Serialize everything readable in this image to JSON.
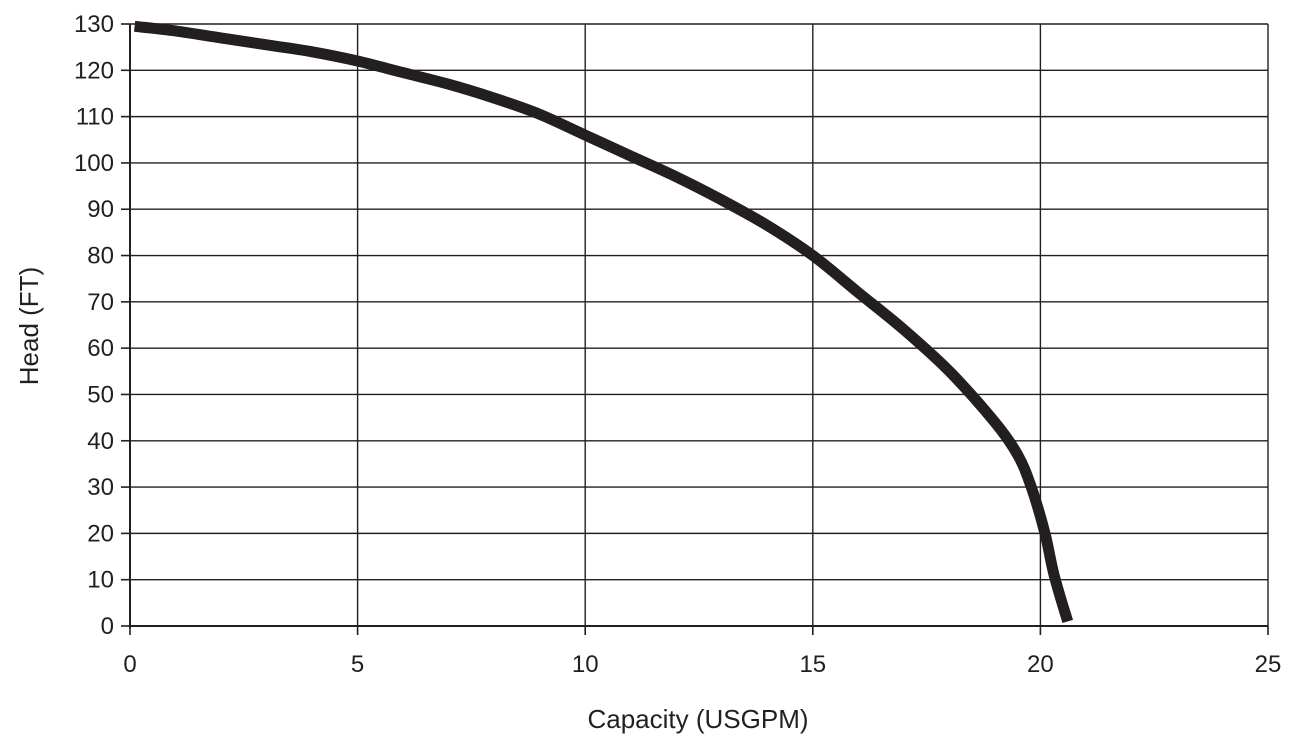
{
  "chart_data": {
    "type": "line",
    "title": "",
    "xlabel": "Capacity (USGPM)",
    "ylabel": "Head (FT)",
    "xlim": [
      0,
      25
    ],
    "ylim": [
      0,
      130
    ],
    "xticks": [
      0,
      5,
      10,
      15,
      20,
      25
    ],
    "yticks": [
      0,
      10,
      20,
      30,
      40,
      50,
      60,
      70,
      80,
      90,
      100,
      110,
      120,
      130
    ],
    "grid": true,
    "line_color": "#231f20",
    "series": [
      {
        "x": [
          0.1,
          1,
          2,
          3,
          4,
          5,
          6,
          7,
          8,
          9,
          10,
          11,
          12,
          13,
          14,
          15,
          16,
          17,
          18,
          19,
          19.5,
          19.8,
          20.1,
          20.3,
          20.6
        ],
        "y": [
          129.5,
          128.5,
          127,
          125.5,
          124,
          122,
          119.5,
          117,
          114,
          110.5,
          106,
          101.5,
          97,
          92,
          86.5,
          80,
          72,
          64,
          55,
          44,
          37,
          30,
          20,
          11,
          1
        ]
      }
    ]
  }
}
